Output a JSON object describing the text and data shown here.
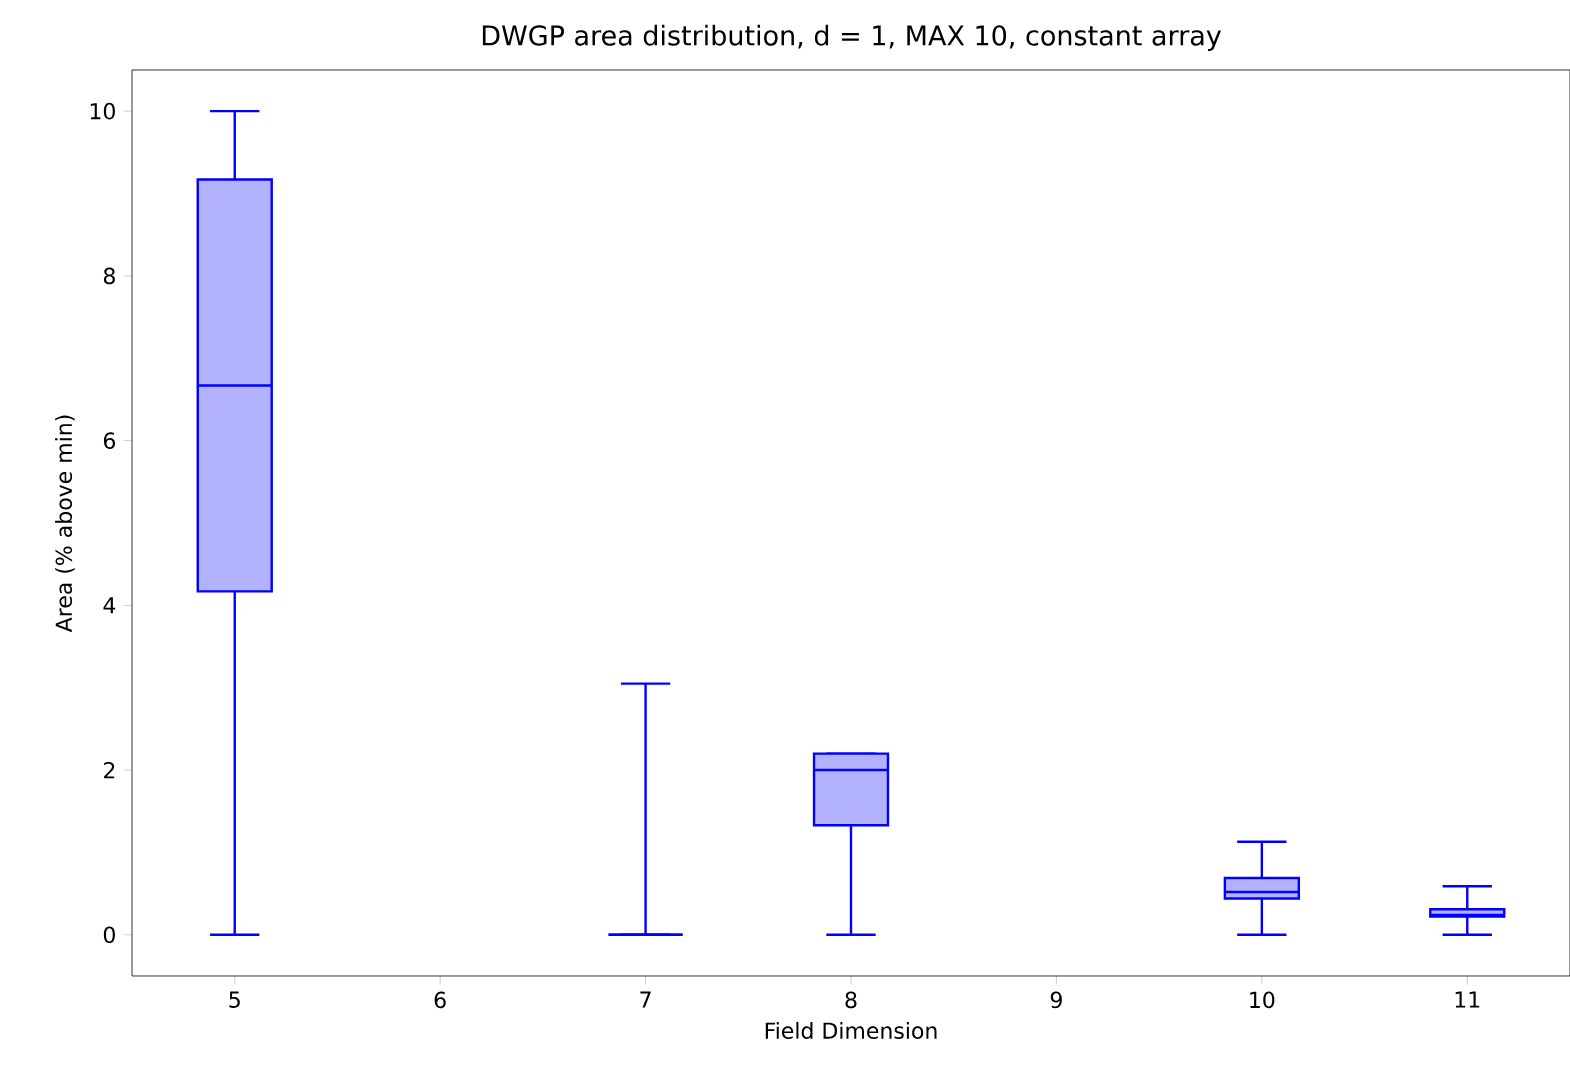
{
  "chart_data": {
    "type": "box",
    "title": "DWGP area distribution, d = 1, MAX 10, constant array",
    "xlabel": "Field Dimension",
    "ylabel": "Area (% above min)",
    "categories": [
      "5",
      "6",
      "7",
      "8",
      "9",
      "10",
      "11"
    ],
    "series": [
      {
        "color": "#0000ff",
        "boxes": [
          {
            "low": 0,
            "q1": 4.17,
            "median": 6.67,
            "q3": 9.17,
            "high": 10
          },
          null,
          {
            "low": 0,
            "q1": 0,
            "median": 0,
            "q3": 0,
            "high": 3.05
          },
          {
            "low": 0,
            "q1": 1.33,
            "median": 2.0,
            "q3": 2.2,
            "high": 2.2
          },
          null,
          {
            "low": 0,
            "q1": 0.44,
            "median": 0.52,
            "q3": 0.69,
            "high": 1.13
          },
          {
            "low": 0,
            "q1": 0.22,
            "median": 0.24,
            "q3": 0.31,
            "high": 0.59
          }
        ]
      }
    ],
    "ylim": [
      -0.5,
      10.5
    ],
    "yticks": [
      0,
      2,
      4,
      6,
      8,
      10
    ],
    "grid": false
  }
}
